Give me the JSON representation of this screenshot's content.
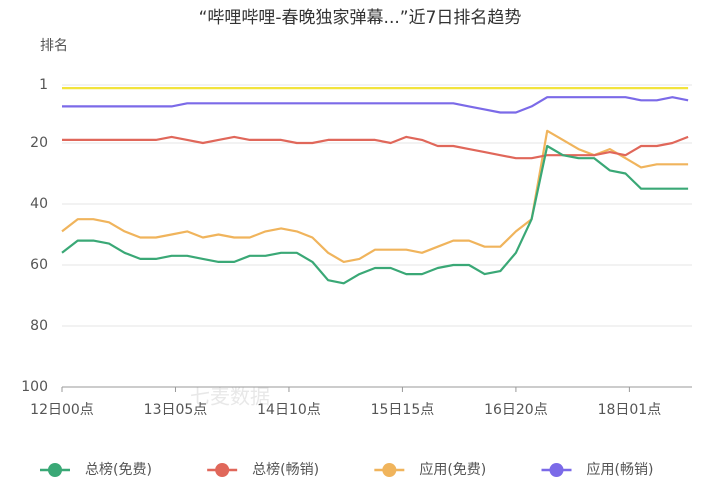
{
  "chart_data": {
    "type": "line",
    "title": "“哔哩哔哩-春晚独家弹幕...”近7日排名趋势",
    "y_label": "排名",
    "watermark": "七麦数据",
    "x": [
      0,
      4,
      8,
      12,
      16,
      20,
      24,
      28,
      32,
      36,
      40,
      44,
      48,
      52,
      56,
      60,
      64,
      68,
      72,
      76,
      80,
      84,
      88,
      92,
      96,
      100,
      104,
      108,
      112,
      116,
      120,
      124,
      128,
      132,
      136,
      140,
      144,
      148,
      152,
      156,
      160
    ],
    "xlim": [
      0,
      161
    ],
    "xticks": [
      {
        "value": 0,
        "label": "12日00点"
      },
      {
        "value": 29,
        "label": "13日05点"
      },
      {
        "value": 58,
        "label": "14日10点"
      },
      {
        "value": 87,
        "label": "15日15点"
      },
      {
        "value": 116,
        "label": "16日20点"
      },
      {
        "value": 145,
        "label": "18日01点"
      }
    ],
    "ylim": [
      1,
      100
    ],
    "yticks": [
      1,
      20,
      40,
      60,
      80,
      100
    ],
    "y_reversed": true,
    "grid": true,
    "legend": "bottom",
    "series": [
      {
        "name": "总榜(免费)",
        "color": "#3aa876",
        "values": [
          56,
          52,
          52,
          53,
          56,
          58,
          58,
          57,
          57,
          58,
          59,
          59,
          57,
          57,
          56,
          56,
          59,
          65,
          66,
          63,
          61,
          61,
          63,
          63,
          61,
          60,
          60,
          63,
          62,
          56,
          45,
          21,
          24,
          25,
          25,
          29,
          30,
          35,
          35,
          35,
          35
        ]
      },
      {
        "name": "总榜(畅销)",
        "color": "#e0675a",
        "values": [
          19,
          19,
          19,
          19,
          19,
          19,
          19,
          18,
          19,
          20,
          19,
          18,
          19,
          19,
          19,
          20,
          20,
          19,
          19,
          19,
          19,
          20,
          18,
          19,
          21,
          21,
          22,
          23,
          24,
          25,
          25,
          24,
          24,
          24,
          24,
          23,
          24,
          21,
          21,
          20,
          18
        ]
      },
      {
        "name": "应用(免费)",
        "color": "#f0b45c",
        "values": [
          49,
          45,
          45,
          46,
          49,
          51,
          51,
          50,
          49,
          51,
          50,
          51,
          51,
          49,
          48,
          49,
          51,
          56,
          59,
          58,
          55,
          55,
          55,
          56,
          54,
          52,
          52,
          54,
          54,
          49,
          45,
          16,
          19,
          22,
          24,
          22,
          25,
          28,
          27,
          27,
          27
        ]
      },
      {
        "name": "应用(畅销)",
        "color": "#7b6ae8",
        "values": [
          8,
          8,
          8,
          8,
          8,
          8,
          8,
          8,
          7,
          7,
          7,
          7,
          7,
          7,
          7,
          7,
          7,
          7,
          7,
          7,
          7,
          7,
          7,
          7,
          7,
          7,
          8,
          9,
          10,
          10,
          8,
          5,
          5,
          5,
          5,
          5,
          5,
          6,
          6,
          5,
          6
        ]
      },
      {
        "color": "#f2e33c",
        "values": [
          2,
          2,
          2,
          2,
          2,
          2,
          2,
          2,
          2,
          2,
          2,
          2,
          2,
          2,
          2,
          2,
          2,
          2,
          2,
          2,
          2,
          2,
          2,
          2,
          2,
          2,
          2,
          2,
          2,
          2,
          2,
          2,
          2,
          2,
          2,
          2,
          2,
          2,
          2,
          2,
          2
        ]
      }
    ]
  }
}
